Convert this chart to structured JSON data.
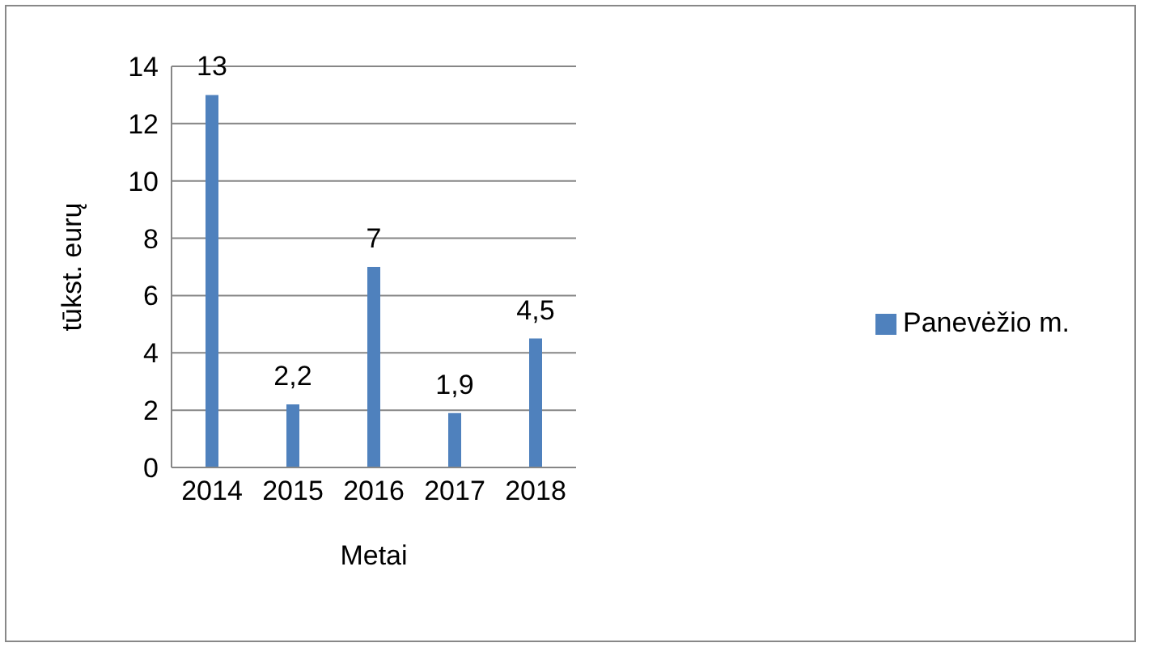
{
  "chart_data": {
    "type": "bar",
    "xlabel": "Metai",
    "ylabel": "tūkst. eurų",
    "categories": [
      "2014",
      "2015",
      "2016",
      "2017",
      "2018"
    ],
    "series": [
      {
        "name": "Panevėžio m.",
        "color": "#4f81bd",
        "values": [
          13,
          2.2,
          7,
          1.9,
          4.5
        ],
        "value_labels": [
          "13",
          "2,2",
          "7",
          "1,9",
          "4,5"
        ]
      }
    ],
    "ylim": [
      0,
      14
    ],
    "yticks": [
      0,
      2,
      4,
      6,
      8,
      10,
      12,
      14
    ],
    "grid": "y",
    "legend": "right"
  }
}
